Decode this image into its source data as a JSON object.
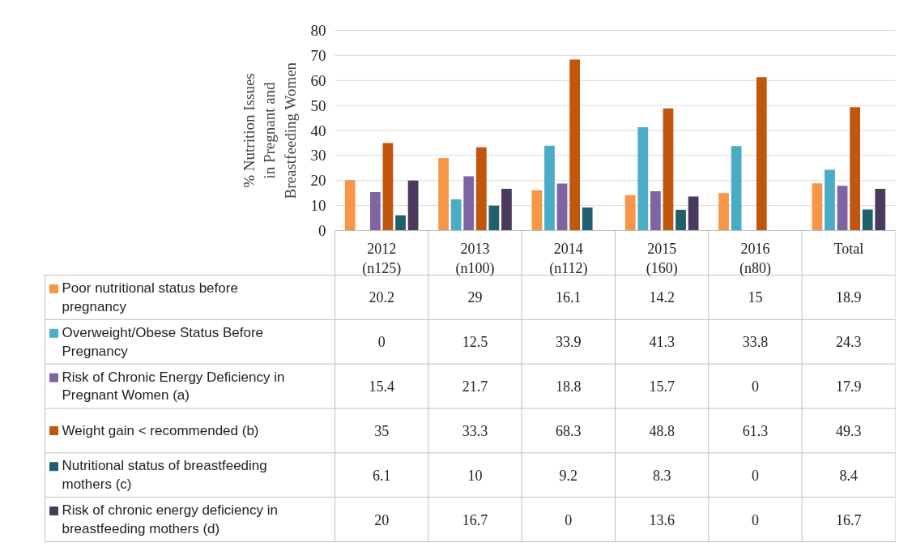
{
  "chart_data": {
    "type": "bar",
    "ylabel": "% Nutrition Issues in Pregnant and Breastfeeding Women",
    "categories": [
      "2012 (n125)",
      "2013 (n100)",
      "2014 (n112)",
      "2015 (160)",
      "2016 (n80)",
      "Total"
    ],
    "series": [
      {
        "name": "Poor nutritional status before pregnancy",
        "color": "#f79646",
        "values": [
          20.2,
          29,
          16.1,
          14.2,
          15,
          18.9
        ]
      },
      {
        "name": "Overweight/Obese Status Before Pregnancy",
        "color": "#4bacc6",
        "values": [
          0,
          12.5,
          33.9,
          41.3,
          33.8,
          24.3
        ]
      },
      {
        "name": "Risk of Chronic Energy Deficiency in Pregnant Women (a)",
        "color": "#8064a2",
        "values": [
          15.4,
          21.7,
          18.8,
          15.7,
          0,
          17.9
        ]
      },
      {
        "name": "Weight gain < recommended (b)",
        "color": "#c0570c",
        "values": [
          35,
          33.3,
          68.3,
          48.8,
          61.3,
          49.3
        ]
      },
      {
        "name": "Nutritional status of breastfeeding mothers (c)",
        "color": "#215f6e",
        "values": [
          6.1,
          10,
          9.2,
          8.3,
          0,
          8.4
        ]
      },
      {
        "name": "Risk of chronic energy deficiency in breastfeeding mothers (d)",
        "color": "#4a3a5e",
        "values": [
          20,
          16.7,
          0,
          13.6,
          0,
          16.7
        ]
      }
    ],
    "ylim": [
      0,
      80
    ],
    "yticks": [
      0,
      10,
      20,
      30,
      40,
      50,
      60,
      70,
      80
    ],
    "grid": "y",
    "legend": "bottom",
    "data_labels": true
  }
}
